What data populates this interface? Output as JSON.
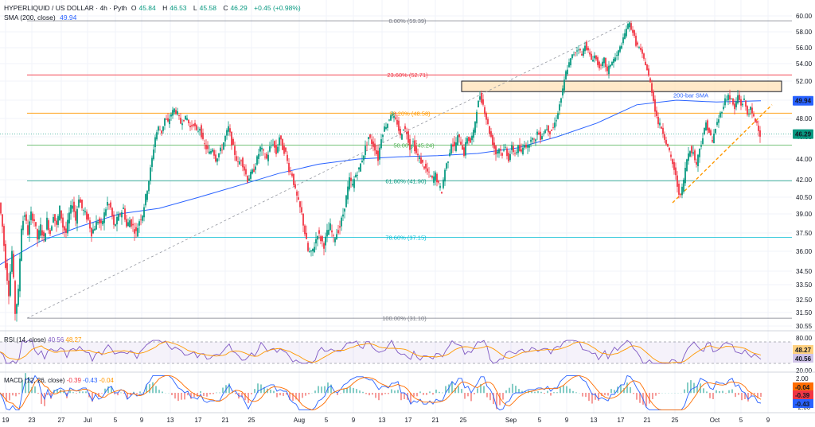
{
  "header": {
    "symbol": "HYPERLIQUID / US DOLLAR · 4h · Pyth",
    "open_label": "O",
    "open": "45.84",
    "high_label": "H",
    "high": "46.53",
    "low_label": "L",
    "low": "45.58",
    "close_label": "C",
    "close": "46.29",
    "change": "+0.45 (+0.98%)",
    "sma_label": "SMA (200, close)",
    "sma_value": "49.94"
  },
  "rsi": {
    "label": "RSI (14, close)",
    "value": "40.56",
    "ma": "48.27",
    "ma_badge": "48.27",
    "value_badge": "40.56",
    "ticks": [
      "80.00",
      "20.00"
    ]
  },
  "macd": {
    "label": "MACD (12, 26, close)",
    "hist": "-0.39",
    "macd": "-0.43",
    "signal": "-0.04",
    "badges": [
      "-0.04",
      "-0.39",
      "-0.43"
    ],
    "ticks": [
      "2.00",
      "-2.00"
    ]
  },
  "price_badges": {
    "sma": "49.94",
    "close": "46.29"
  },
  "colors": {
    "up": "#089981",
    "down": "#f23645",
    "sma": "#2962ff",
    "rsi": "#7e57c2",
    "rsi_ma": "#ff9800",
    "macd": "#2962ff",
    "signal": "#ff6d00"
  },
  "chart_data": {
    "type": "candlestick",
    "y_axis_ticks": [
      60.0,
      58.0,
      56.0,
      54.0,
      52.0,
      50.0,
      48.0,
      46.0,
      44.0,
      42.0,
      40.5,
      39.0,
      37.5,
      36.0,
      34.5,
      33.5,
      32.5,
      31.5,
      30.55
    ],
    "y_axis_labels": [
      "60.00",
      "58.00",
      "56.00",
      "54.00",
      "52.00",
      "50.00",
      "48.00",
      "46.00",
      "44.00",
      "42.00",
      "40.50",
      "39.00",
      "37.50",
      "36.00",
      "34.50",
      "33.50",
      "32.50",
      "31.50",
      "30.55"
    ],
    "x_axis_labels": [
      "19",
      "23",
      "27",
      "Jul",
      "5",
      "9",
      "13",
      "17",
      "21",
      "25",
      "Aug",
      "5",
      "9",
      "13",
      "17",
      "21",
      "25",
      "Sep",
      "5",
      "9",
      "13",
      "17",
      "21",
      "25",
      "Oct",
      "5",
      "9"
    ],
    "fib_levels": [
      {
        "label": "0.00% (59.39)",
        "value": 59.39,
        "color": "#787b86"
      },
      {
        "label": "23.60% (52.71)",
        "value": 52.71,
        "color": "#f23645"
      },
      {
        "label": "38.20% (48.58)",
        "value": 48.58,
        "color": "#ff9800"
      },
      {
        "label": "50.00% (45.24)",
        "value": 45.24,
        "color": "#4caf50"
      },
      {
        "label": "61.80% (41.90)",
        "value": 41.9,
        "color": "#089981"
      },
      {
        "label": "78.60% (37.15)",
        "value": 37.15,
        "color": "#00bcd4"
      },
      {
        "label": "100.00% (31.10)",
        "value": 31.1,
        "color": "#787b86"
      }
    ],
    "annotations": {
      "sma_label": "200-bar SMA"
    },
    "resistance_zone": [
      50.9,
      52.0
    ],
    "current_price": 46.29,
    "sma_current": 49.94,
    "price_path": [
      [
        0,
        40
      ],
      [
        4,
        38
      ],
      [
        8,
        35
      ],
      [
        12,
        33
      ],
      [
        16,
        36
      ],
      [
        20,
        31.5
      ],
      [
        24,
        33
      ],
      [
        28,
        38
      ],
      [
        32,
        39
      ],
      [
        36,
        37.5
      ],
      [
        40,
        39
      ],
      [
        44,
        38.5
      ],
      [
        48,
        37
      ],
      [
        52,
        38
      ],
      [
        56,
        37
      ],
      [
        60,
        38.5
      ],
      [
        64,
        37.5
      ],
      [
        68,
        39
      ],
      [
        72,
        38
      ],
      [
        76,
        39.5
      ],
      [
        80,
        38
      ],
      [
        84,
        37.5
      ],
      [
        88,
        39
      ],
      [
        92,
        40
      ],
      [
        96,
        38.5
      ],
      [
        100,
        40.5
      ],
      [
        104,
        39.5
      ],
      [
        108,
        39
      ],
      [
        112,
        38.5
      ],
      [
        116,
        37.5
      ],
      [
        120,
        38
      ],
      [
        124,
        38.5
      ],
      [
        128,
        38
      ],
      [
        132,
        39
      ],
      [
        136,
        40
      ],
      [
        140,
        39.5
      ],
      [
        144,
        38
      ],
      [
        148,
        38.5
      ],
      [
        152,
        39
      ],
      [
        156,
        39.5
      ],
      [
        160,
        38
      ],
      [
        164,
        38.5
      ],
      [
        168,
        38
      ],
      [
        172,
        37.5
      ],
      [
        176,
        38.5
      ],
      [
        180,
        39
      ],
      [
        184,
        40.5
      ],
      [
        188,
        42
      ],
      [
        192,
        44
      ],
      [
        196,
        46
      ],
      [
        200,
        47
      ],
      [
        204,
        46.5
      ],
      [
        208,
        48
      ],
      [
        212,
        47.5
      ],
      [
        216,
        48.5
      ],
      [
        220,
        49
      ],
      [
        224,
        48.5
      ],
      [
        228,
        47.5
      ],
      [
        232,
        48
      ],
      [
        236,
        48
      ],
      [
        240,
        47
      ],
      [
        244,
        47.5
      ],
      [
        248,
        46.5
      ],
      [
        252,
        47
      ],
      [
        256,
        45.5
      ],
      [
        260,
        45
      ],
      [
        264,
        44.5
      ],
      [
        268,
        45
      ],
      [
        272,
        44
      ],
      [
        276,
        44.5
      ],
      [
        280,
        45
      ],
      [
        284,
        46
      ],
      [
        288,
        47
      ],
      [
        292,
        45.5
      ],
      [
        296,
        44.5
      ],
      [
        300,
        43.5
      ],
      [
        304,
        44
      ],
      [
        308,
        43
      ],
      [
        312,
        42
      ],
      [
        316,
        42.5
      ],
      [
        320,
        43
      ],
      [
        324,
        44
      ],
      [
        328,
        45
      ],
      [
        332,
        44.5
      ],
      [
        336,
        44
      ],
      [
        340,
        45
      ],
      [
        344,
        45.5
      ],
      [
        348,
        44.5
      ],
      [
        352,
        46
      ],
      [
        356,
        45
      ],
      [
        360,
        44.5
      ],
      [
        364,
        43
      ],
      [
        368,
        42.5
      ],
      [
        372,
        41
      ],
      [
        376,
        40
      ],
      [
        380,
        39
      ],
      [
        384,
        37.5
      ],
      [
        388,
        36
      ],
      [
        392,
        35.8
      ],
      [
        396,
        36.5
      ],
      [
        400,
        37.5
      ],
      [
        404,
        37
      ],
      [
        408,
        36.5
      ],
      [
        412,
        37.5
      ],
      [
        416,
        38
      ],
      [
        420,
        37
      ],
      [
        424,
        37.5
      ],
      [
        428,
        38
      ],
      [
        432,
        39
      ],
      [
        436,
        40.5
      ],
      [
        440,
        42
      ],
      [
        444,
        41.5
      ],
      [
        448,
        42.5
      ],
      [
        452,
        43
      ],
      [
        456,
        44
      ],
      [
        460,
        45
      ],
      [
        464,
        46
      ],
      [
        468,
        45.5
      ],
      [
        472,
        45
      ],
      [
        476,
        44
      ],
      [
        480,
        46
      ],
      [
        484,
        47
      ],
      [
        488,
        47.5
      ],
      [
        492,
        48.5
      ],
      [
        496,
        48
      ],
      [
        500,
        47.5
      ],
      [
        504,
        46
      ],
      [
        508,
        47
      ],
      [
        512,
        46.5
      ],
      [
        516,
        45
      ],
      [
        520,
        45.5
      ],
      [
        524,
        44.5
      ],
      [
        528,
        44
      ],
      [
        532,
        43.5
      ],
      [
        536,
        43
      ],
      [
        540,
        42.5
      ],
      [
        544,
        42
      ],
      [
        548,
        42.5
      ],
      [
        552,
        41.5
      ],
      [
        556,
        41
      ],
      [
        560,
        43
      ],
      [
        564,
        44
      ],
      [
        568,
        45.5
      ],
      [
        572,
        45
      ],
      [
        576,
        46
      ],
      [
        580,
        45.5
      ],
      [
        584,
        44.5
      ],
      [
        588,
        46
      ],
      [
        592,
        45.5
      ],
      [
        596,
        46.5
      ],
      [
        600,
        49
      ],
      [
        604,
        50.5
      ],
      [
        608,
        49.5
      ],
      [
        612,
        48
      ],
      [
        616,
        46.5
      ],
      [
        620,
        45.5
      ],
      [
        624,
        44.5
      ],
      [
        628,
        45
      ],
      [
        632,
        44.5
      ],
      [
        636,
        45
      ],
      [
        640,
        44
      ],
      [
        644,
        45
      ],
      [
        648,
        44.5
      ],
      [
        652,
        45
      ],
      [
        656,
        44.5
      ],
      [
        660,
        45.5
      ],
      [
        664,
        45
      ],
      [
        668,
        46
      ],
      [
        672,
        45.5
      ],
      [
        676,
        46.5
      ],
      [
        680,
        46
      ],
      [
        684,
        46.5
      ],
      [
        688,
        47
      ],
      [
        692,
        46.5
      ],
      [
        696,
        47
      ],
      [
        700,
        48
      ],
      [
        704,
        49.5
      ],
      [
        708,
        51
      ],
      [
        712,
        53
      ],
      [
        716,
        54
      ],
      [
        720,
        55
      ],
      [
        724,
        55.5
      ],
      [
        728,
        56
      ],
      [
        732,
        55
      ],
      [
        736,
        56.5
      ],
      [
        740,
        55.5
      ],
      [
        744,
        54.5
      ],
      [
        748,
        55
      ],
      [
        752,
        54
      ],
      [
        756,
        53.5
      ],
      [
        760,
        54.5
      ],
      [
        764,
        53
      ],
      [
        768,
        54
      ],
      [
        772,
        54.5
      ],
      [
        776,
        55
      ],
      [
        780,
        56
      ],
      [
        784,
        57
      ],
      [
        788,
        58.5
      ],
      [
        792,
        59
      ],
      [
        796,
        58
      ],
      [
        800,
        56.5
      ],
      [
        804,
        56
      ],
      [
        808,
        55
      ],
      [
        812,
        54
      ],
      [
        816,
        52.5
      ],
      [
        820,
        51
      ],
      [
        824,
        49
      ],
      [
        828,
        47.5
      ],
      [
        832,
        47
      ],
      [
        836,
        46
      ],
      [
        840,
        45
      ],
      [
        844,
        44
      ],
      [
        848,
        43
      ],
      [
        852,
        41.5
      ],
      [
        856,
        40.5
      ],
      [
        860,
        42
      ],
      [
        864,
        44
      ],
      [
        868,
        45
      ],
      [
        872,
        44.5
      ],
      [
        876,
        43.5
      ],
      [
        880,
        45
      ],
      [
        884,
        46
      ],
      [
        888,
        47.5
      ],
      [
        892,
        46.5
      ],
      [
        896,
        45.5
      ],
      [
        900,
        47
      ],
      [
        904,
        48
      ],
      [
        908,
        49
      ],
      [
        912,
        50
      ],
      [
        916,
        50.5
      ],
      [
        920,
        50
      ],
      [
        924,
        49
      ],
      [
        928,
        50.5
      ],
      [
        932,
        49.5
      ],
      [
        936,
        50
      ],
      [
        940,
        48.5
      ],
      [
        944,
        49
      ],
      [
        948,
        48
      ],
      [
        952,
        47.5
      ],
      [
        956,
        46.3
      ]
    ],
    "sma_path": [
      [
        0,
        35
      ],
      [
        50,
        36.8
      ],
      [
        100,
        38
      ],
      [
        150,
        39
      ],
      [
        200,
        39.5
      ],
      [
        250,
        40.5
      ],
      [
        300,
        41.5
      ],
      [
        350,
        42.6
      ],
      [
        400,
        43.5
      ],
      [
        450,
        44
      ],
      [
        500,
        44.2
      ],
      [
        550,
        44.3
      ],
      [
        600,
        44.5
      ],
      [
        650,
        45
      ],
      [
        700,
        46
      ],
      [
        750,
        47.5
      ],
      [
        800,
        49.5
      ],
      [
        850,
        50
      ],
      [
        900,
        49.8
      ],
      [
        956,
        49.94
      ]
    ],
    "trendline": {
      "from": [
        845,
        40.0
      ],
      "to": [
        970,
        49.5
      ]
    },
    "rsi_band": [
      30,
      70
    ],
    "macd_range": [
      -2.5,
      2.5
    ]
  }
}
